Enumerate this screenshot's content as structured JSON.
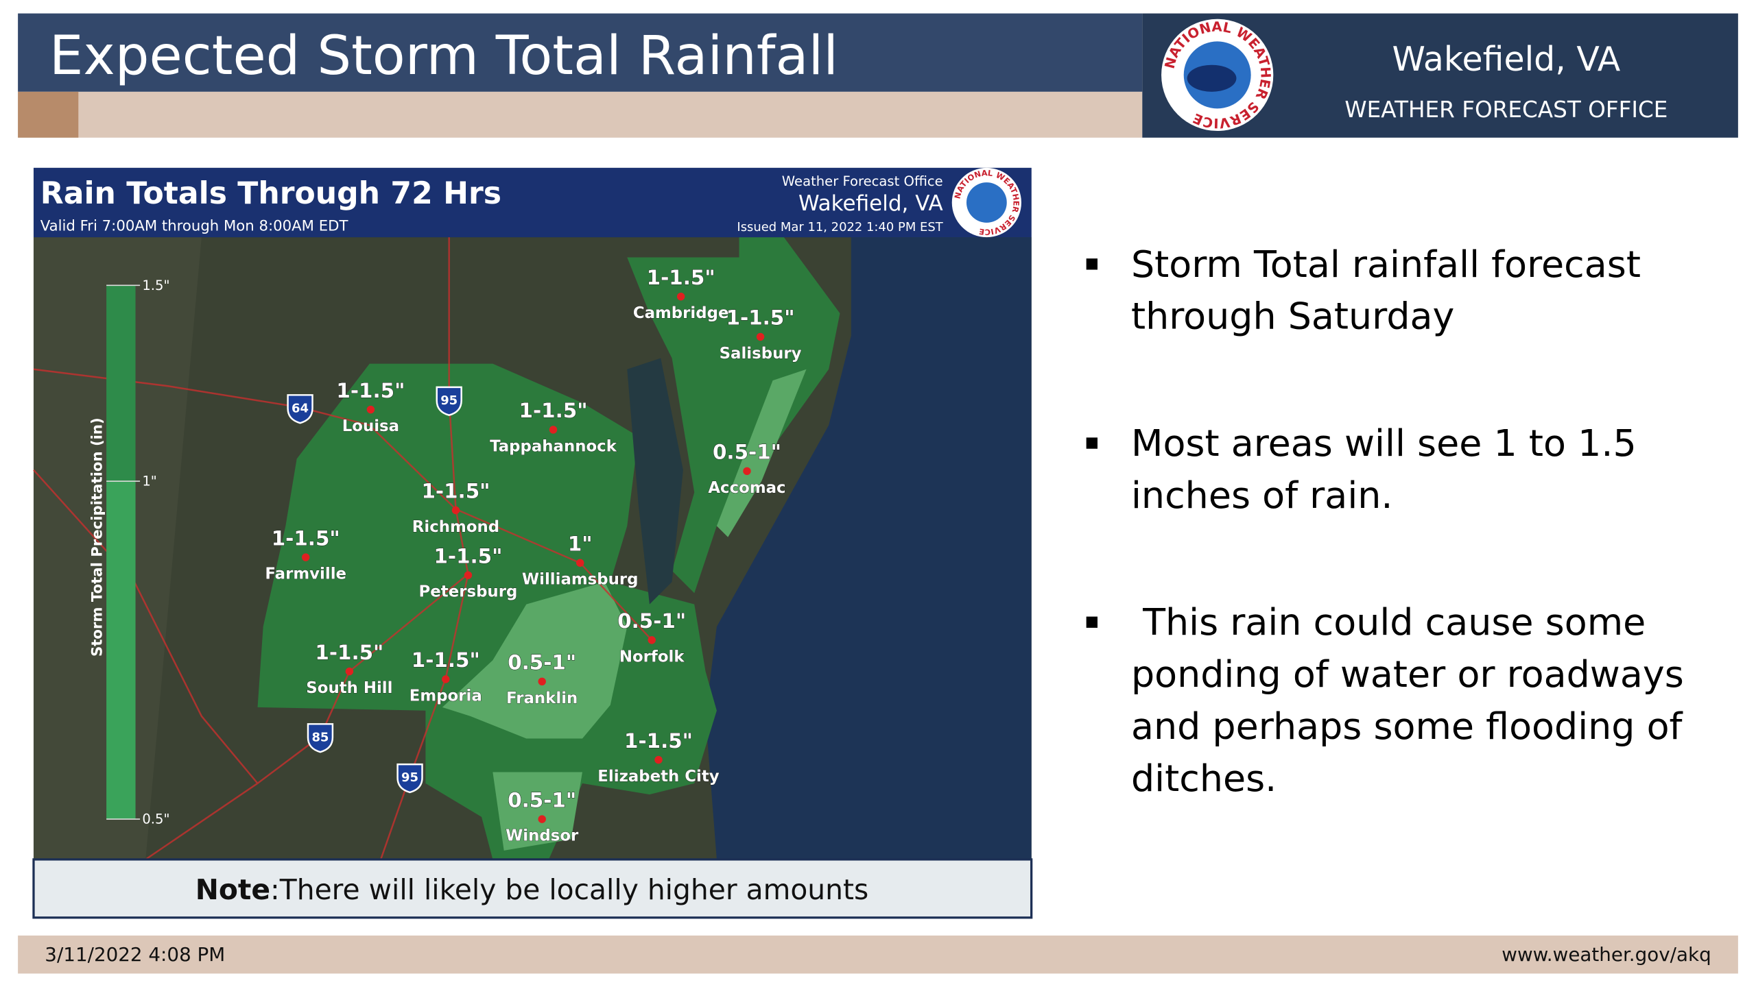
{
  "header": {
    "title": "Expected Storm Total Rainfall",
    "office": "Wakefield, VA",
    "office_subtitle": "WEATHER FORECAST OFFICE",
    "logo_text": "NATIONAL WEATHER SERVICE"
  },
  "map": {
    "title": "Rain Totals Through 72 Hrs",
    "valid": "Valid Fri 7:00AM through Mon 8:00AM EDT",
    "wfo_label": "Weather Forecast Office",
    "wfo_name": "Wakefield, VA",
    "issued": "Issued Mar 11, 2022 1:40 PM EST",
    "legend_title": "Storm Total Precipitation (in)",
    "legend_ticks": [
      "1.5\"",
      "1\"",
      "0.5\""
    ],
    "locations": [
      {
        "name": "Cambridge",
        "amount": "1-1.5\""
      },
      {
        "name": "Salisbury",
        "amount": "1-1.5\""
      },
      {
        "name": "Louisa",
        "amount": "1-1.5\""
      },
      {
        "name": "Tappahannock",
        "amount": "1-1.5\""
      },
      {
        "name": "Accomac",
        "amount": "0.5-1\""
      },
      {
        "name": "Richmond",
        "amount": "1-1.5\""
      },
      {
        "name": "Farmville",
        "amount": "1-1.5\""
      },
      {
        "name": "Petersburg",
        "amount": "1-1.5\""
      },
      {
        "name": "Williamsburg",
        "amount": "1\""
      },
      {
        "name": "Norfolk",
        "amount": "0.5-1\""
      },
      {
        "name": "South Hill",
        "amount": "1-1.5\""
      },
      {
        "name": "Emporia",
        "amount": "1-1.5\""
      },
      {
        "name": "Franklin",
        "amount": "0.5-1\""
      },
      {
        "name": "Elizabeth City",
        "amount": "1-1.5\""
      },
      {
        "name": "Windsor",
        "amount": "0.5-1\""
      }
    ],
    "highways": [
      "64",
      "95",
      "85",
      "95"
    ],
    "note_bold": "Note",
    "note_text": ":There will likely be locally higher amounts"
  },
  "bullets": [
    [
      "Storm Total rainfall forecast",
      "through Saturday"
    ],
    [
      "Most areas will see 1 to 1.5",
      "inches of rain."
    ],
    [
      " This rain could cause some",
      "ponding of water or roadways",
      "and perhaps some flooding of",
      "ditches."
    ]
  ],
  "footer": {
    "date": "3/11/2022 4:08 PM",
    "url": "www.weather.gov/akq"
  }
}
